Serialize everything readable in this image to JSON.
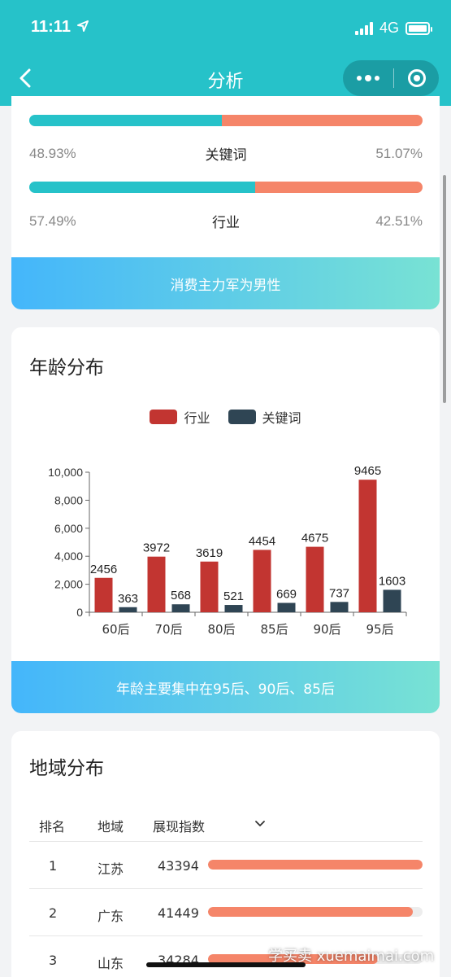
{
  "status_bar": {
    "time": "11:11",
    "network": "4G"
  },
  "nav": {
    "title": "分析"
  },
  "gender_section": {
    "rows": [
      {
        "left_pct": "48.93%",
        "label": "关键词",
        "right_pct": "51.07%",
        "left_ratio": 0.4893
      },
      {
        "left_pct": "57.49%",
        "label": "行业",
        "right_pct": "42.51%",
        "left_ratio": 0.5749
      }
    ],
    "banner": "消费主力军为男性"
  },
  "age_section": {
    "title": "年龄分布",
    "banner": "年龄主要集中在95后、90后、85后"
  },
  "chart_data": {
    "type": "bar",
    "categories": [
      "60后",
      "70后",
      "80后",
      "85后",
      "90后",
      "95后"
    ],
    "series": [
      {
        "name": "行业",
        "values": [
          2456,
          3972,
          3619,
          4454,
          4675,
          9465
        ],
        "color": "#c23531"
      },
      {
        "name": "关键词",
        "values": [
          363,
          568,
          521,
          669,
          737,
          1603
        ],
        "color": "#2f4554"
      }
    ],
    "yticks": [
      "0",
      "2,000",
      "4,000",
      "6,000",
      "8,000",
      "10,000"
    ],
    "ylim": [
      0,
      10000
    ],
    "legend": "top-center",
    "grid": false
  },
  "region_section": {
    "title": "地域分布",
    "headers": {
      "rank": "排名",
      "region": "地域",
      "index": "展现指数"
    },
    "rows": [
      {
        "rank": "1",
        "region": "江苏",
        "value": "43394",
        "ratio": 1.0
      },
      {
        "rank": "2",
        "region": "广东",
        "value": "41449",
        "ratio": 0.955
      },
      {
        "rank": "3",
        "region": "山东",
        "value": "34284",
        "ratio": 0.79
      }
    ]
  },
  "watermark": "学买卖 xuemaimai.com"
}
